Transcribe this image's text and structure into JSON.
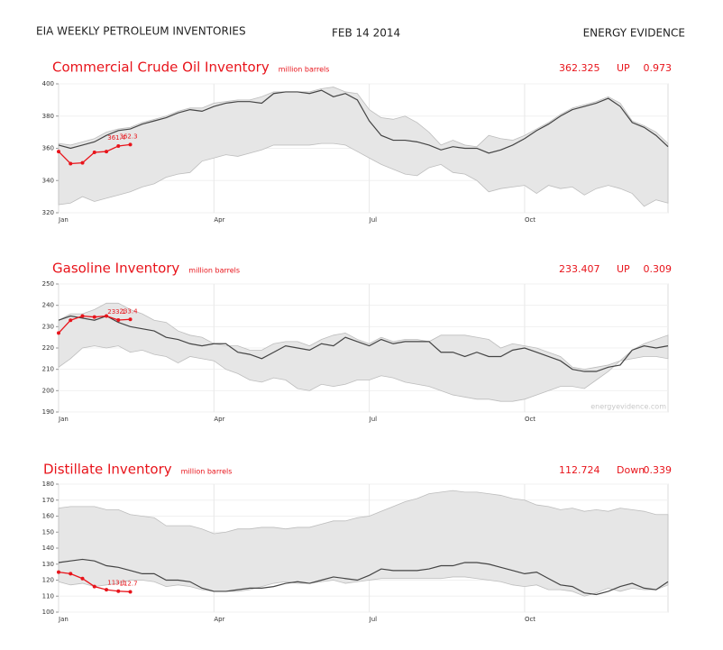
{
  "header": {
    "title": "EIA WEEKLY PETROLEUM INVENTORIES",
    "date": "FEB 14 2014",
    "brand": "ENERGY EVIDENCE"
  },
  "chart_data": [
    {
      "type": "line",
      "title": "Commercial Crude Oil Inventory",
      "subtitle": "million barrels",
      "latest": 362.325,
      "direction": "UP",
      "change": 0.973,
      "categories": [
        "Jan",
        null,
        null,
        null,
        null,
        null,
        null,
        null,
        null,
        null,
        null,
        null,
        null,
        "Apr",
        null,
        null,
        null,
        null,
        null,
        null,
        null,
        null,
        null,
        null,
        null,
        null,
        "Jul",
        null,
        null,
        null,
        null,
        null,
        null,
        null,
        null,
        null,
        null,
        null,
        null,
        "Oct",
        null,
        null,
        null,
        null,
        null,
        null,
        null,
        null,
        null,
        null,
        null,
        null
      ],
      "values": [
        358,
        350.5,
        351,
        357.5,
        358,
        361.4,
        362.3,
        null,
        null,
        null,
        null,
        null,
        null,
        null,
        null,
        null,
        null,
        null,
        null,
        null,
        null,
        null,
        null,
        null,
        null,
        null,
        null,
        null,
        null,
        null,
        null,
        null,
        null,
        null,
        null,
        null,
        null,
        null,
        null,
        null,
        null,
        null,
        null,
        null,
        null,
        null,
        null,
        null,
        null,
        null,
        null,
        null
      ],
      "value_labels": [
        null,
        null,
        null,
        null,
        null,
        "361.4",
        "362.3",
        null,
        null,
        null,
        null,
        null,
        null,
        null,
        null,
        null,
        null,
        null,
        null,
        null,
        null,
        null,
        null,
        null,
        null,
        null,
        null,
        null,
        null,
        null,
        null,
        null,
        null,
        null,
        null,
        null,
        null,
        null,
        null,
        null,
        null,
        null,
        null,
        null,
        null,
        null,
        null,
        null,
        null,
        null,
        null,
        null
      ],
      "average_values": [
        362,
        360,
        362,
        364,
        368,
        371,
        372,
        375,
        377,
        379,
        382,
        384,
        383,
        386,
        388,
        389,
        389,
        388,
        394,
        395,
        395,
        394,
        396,
        392,
        394,
        390,
        377,
        368,
        365,
        365,
        364,
        362,
        359,
        361,
        360,
        360,
        357,
        359,
        362,
        366,
        371,
        375,
        380,
        384,
        386,
        388,
        391,
        386,
        376,
        373,
        368,
        361
      ],
      "range_high": [
        363,
        362,
        364,
        366,
        370,
        372,
        373,
        376,
        378,
        380,
        383,
        385,
        385,
        388,
        389,
        390,
        390,
        392,
        395,
        395,
        395,
        395,
        397,
        398,
        395,
        394,
        384,
        379,
        378,
        380,
        376,
        370,
        362,
        365,
        362,
        361,
        368,
        366,
        365,
        368,
        372,
        376,
        381,
        385,
        387,
        389,
        392,
        388,
        377,
        374,
        370,
        363
      ],
      "range_low": [
        325,
        326,
        330,
        327,
        329,
        331,
        333,
        336,
        338,
        342,
        344,
        345,
        352,
        354,
        356,
        355,
        357,
        359,
        362,
        362,
        362,
        362,
        363,
        363,
        362,
        358,
        354,
        350,
        347,
        344,
        343,
        348,
        350,
        345,
        344,
        340,
        333,
        335,
        336,
        337,
        332,
        337,
        335,
        336,
        331,
        335,
        337,
        335,
        332,
        324,
        328,
        326
      ],
      "color": "#e8141b",
      "line_color": "#444444",
      "band_color": "#e6e6e6",
      "ylim": [
        320,
        400
      ],
      "yticks": [
        320,
        340,
        360,
        380,
        400
      ],
      "grid": true
    },
    {
      "type": "line",
      "title": "Gasoline Inventory",
      "subtitle": "million barrels",
      "latest": 233.407,
      "direction": "UP",
      "change": 0.309,
      "watermark": "energyevidence.com",
      "categories": [
        "Jan",
        null,
        null,
        null,
        null,
        null,
        null,
        null,
        null,
        null,
        null,
        null,
        null,
        "Apr",
        null,
        null,
        null,
        null,
        null,
        null,
        null,
        null,
        null,
        null,
        null,
        null,
        "Jul",
        null,
        null,
        null,
        null,
        null,
        null,
        null,
        null,
        null,
        null,
        null,
        null,
        "Oct",
        null,
        null,
        null,
        null,
        null,
        null,
        null,
        null,
        null,
        null,
        null,
        null
      ],
      "values": [
        227,
        233,
        235,
        234.5,
        235,
        233.1,
        233.4,
        null,
        null,
        null,
        null,
        null,
        null,
        null,
        null,
        null,
        null,
        null,
        null,
        null,
        null,
        null,
        null,
        null,
        null,
        null,
        null,
        null,
        null,
        null,
        null,
        null,
        null,
        null,
        null,
        null,
        null,
        null,
        null,
        null,
        null,
        null,
        null,
        null,
        null,
        null,
        null,
        null,
        null,
        null,
        null,
        null
      ],
      "value_labels": [
        null,
        null,
        null,
        null,
        null,
        "233.1",
        "233.4",
        null,
        null,
        null,
        null,
        null,
        null,
        null,
        null,
        null,
        null,
        null,
        null,
        null,
        null,
        null,
        null,
        null,
        null,
        null,
        null,
        null,
        null,
        null,
        null,
        null,
        null,
        null,
        null,
        null,
        null,
        null,
        null,
        null,
        null,
        null,
        null,
        null,
        null,
        null,
        null,
        null,
        null,
        null,
        null,
        null
      ],
      "average_values": [
        233,
        235,
        234,
        233,
        235,
        232,
        230,
        229,
        228,
        225,
        224,
        222,
        221,
        222,
        222,
        218,
        217,
        215,
        218,
        221,
        220,
        219,
        222,
        221,
        225,
        223,
        221,
        224,
        222,
        223,
        223,
        223,
        218,
        218,
        216,
        218,
        216,
        216,
        219,
        220,
        218,
        216,
        214,
        210,
        209,
        209,
        211,
        212,
        219,
        221,
        220,
        221
      ],
      "range_high": [
        233,
        236,
        236,
        238,
        241,
        241,
        238,
        236,
        233,
        232,
        228,
        226,
        225,
        222,
        221,
        221,
        219,
        219,
        222,
        223,
        223,
        221,
        224,
        226,
        227,
        224,
        222,
        225,
        223,
        224,
        224,
        223,
        226,
        226,
        226,
        225,
        224,
        220,
        222,
        221,
        220,
        218,
        216,
        211,
        210,
        211,
        212,
        214,
        219,
        222,
        224,
        226
      ],
      "range_low": [
        211,
        215,
        220,
        221,
        220,
        221,
        218,
        219,
        217,
        216,
        213,
        216,
        215,
        214,
        210,
        208,
        205,
        204,
        206,
        205,
        201,
        200,
        203,
        202,
        203,
        205,
        205,
        207,
        206,
        204,
        203,
        202,
        200,
        198,
        197,
        196,
        196,
        195,
        195,
        196,
        198,
        200,
        202,
        202,
        201,
        205,
        209,
        214,
        215,
        216,
        216,
        215
      ],
      "color": "#e8141b",
      "line_color": "#444444",
      "band_color": "#e6e6e6",
      "ylim": [
        190,
        250
      ],
      "yticks": [
        190,
        200,
        210,
        220,
        230,
        240,
        250
      ],
      "grid": true
    },
    {
      "type": "line",
      "title": "Distillate Inventory",
      "subtitle": "million barrels",
      "latest": 112.724,
      "direction": "Down",
      "change": 0.339,
      "categories": [
        "Jan",
        null,
        null,
        null,
        null,
        null,
        null,
        null,
        null,
        null,
        null,
        null,
        null,
        "Apr",
        null,
        null,
        null,
        null,
        null,
        null,
        null,
        null,
        null,
        null,
        null,
        null,
        "Jul",
        null,
        null,
        null,
        null,
        null,
        null,
        null,
        null,
        null,
        null,
        null,
        null,
        "Oct",
        null,
        null,
        null,
        null,
        null,
        null,
        null,
        null,
        null,
        null,
        null,
        null
      ],
      "values": [
        125,
        124,
        121,
        116,
        114,
        113.1,
        112.7,
        null,
        null,
        null,
        null,
        null,
        null,
        null,
        null,
        null,
        null,
        null,
        null,
        null,
        null,
        null,
        null,
        null,
        null,
        null,
        null,
        null,
        null,
        null,
        null,
        null,
        null,
        null,
        null,
        null,
        null,
        null,
        null,
        null,
        null,
        null,
        null,
        null,
        null,
        null,
        null,
        null,
        null,
        null,
        null,
        null
      ],
      "value_labels": [
        null,
        null,
        null,
        null,
        null,
        "113.1",
        "112.7",
        null,
        null,
        null,
        null,
        null,
        null,
        null,
        null,
        null,
        null,
        null,
        null,
        null,
        null,
        null,
        null,
        null,
        null,
        null,
        null,
        null,
        null,
        null,
        null,
        null,
        null,
        null,
        null,
        null,
        null,
        null,
        null,
        null,
        null,
        null,
        null,
        null,
        null,
        null,
        null,
        null,
        null,
        null,
        null,
        null
      ],
      "average_values": [
        131,
        132,
        133,
        132,
        129,
        128,
        126,
        124,
        124,
        120,
        120,
        119,
        115,
        113,
        113,
        114,
        115,
        115,
        116,
        118,
        119,
        118,
        120,
        122,
        121,
        120,
        123,
        127,
        126,
        126,
        126,
        127,
        129,
        129,
        131,
        131,
        130,
        128,
        126,
        124,
        125,
        121,
        117,
        116,
        112,
        111,
        113,
        116,
        118,
        115,
        114,
        119
      ],
      "range_high": [
        165,
        166,
        166,
        166,
        164,
        164,
        161,
        160,
        159,
        154,
        154,
        154,
        152,
        149,
        150,
        152,
        152,
        153,
        153,
        152,
        153,
        153,
        155,
        157,
        157,
        159,
        160,
        163,
        166,
        169,
        171,
        174,
        175,
        176,
        175,
        175,
        174,
        173,
        171,
        170,
        167,
        166,
        164,
        165,
        163,
        164,
        163,
        165,
        164,
        163,
        161,
        161
      ],
      "range_low": [
        119,
        117,
        118,
        116,
        117,
        118,
        120,
        120,
        119,
        116,
        117,
        116,
        114,
        113,
        113,
        113,
        114,
        116,
        118,
        119,
        118,
        118,
        119,
        120,
        118,
        119,
        120,
        121,
        121,
        121,
        121,
        121,
        121,
        122,
        122,
        121,
        120,
        119,
        117,
        116,
        117,
        114,
        114,
        113,
        110,
        112,
        115,
        113,
        115,
        114,
        114,
        117
      ],
      "color": "#e8141b",
      "line_color": "#444444",
      "band_color": "#e6e6e6",
      "ylim": [
        100,
        180
      ],
      "yticks": [
        100,
        110,
        120,
        130,
        140,
        150,
        160,
        170,
        180
      ],
      "grid": true
    }
  ]
}
